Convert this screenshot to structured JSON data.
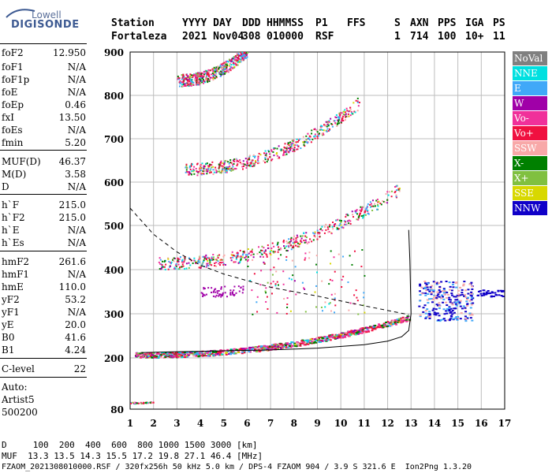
{
  "logo": {
    "line1": "Lowell",
    "line2": "DIGISONDE"
  },
  "header": {
    "row1": [
      "Station",
      "YYYY DAY",
      "DDD",
      "HHMMSS",
      "P1",
      "FFS",
      "S",
      "AXN",
      "PPS",
      "IGA",
      "PS"
    ],
    "row2": [
      "Fortaleza",
      "2021 Nov04",
      "308",
      "010000",
      "RSF",
      "",
      "1",
      "714",
      "100",
      "10+",
      "11"
    ]
  },
  "parameters": [
    {
      "label": "foF2",
      "value": "12.950"
    },
    {
      "label": "foF1",
      "value": "N/A"
    },
    {
      "label": "foF1p",
      "value": "N/A"
    },
    {
      "label": "foE",
      "value": "N/A"
    },
    {
      "label": "foEp",
      "value": "0.46"
    },
    {
      "label": "fxI",
      "value": "13.50"
    },
    {
      "label": "foEs",
      "value": "N/A"
    },
    {
      "label": "fmin",
      "value": "5.20"
    },
    {
      "label": "MUF(D)",
      "value": "46.37"
    },
    {
      "label": "M(D)",
      "value": "3.58"
    },
    {
      "label": "D",
      "value": "N/A"
    },
    {
      "label": "h`F",
      "value": "215.0"
    },
    {
      "label": "h`F2",
      "value": "215.0"
    },
    {
      "label": "h`E",
      "value": "N/A"
    },
    {
      "label": "h`Es",
      "value": "N/A"
    },
    {
      "label": "hmF2",
      "value": "261.6"
    },
    {
      "label": "hmF1",
      "value": "N/A"
    },
    {
      "label": "hmE",
      "value": "110.0"
    },
    {
      "label": "yF2",
      "value": "53.2"
    },
    {
      "label": "yF1",
      "value": "N/A"
    },
    {
      "label": "yE",
      "value": "20.0"
    },
    {
      "label": "B0",
      "value": "41.6"
    },
    {
      "label": "B1",
      "value": "4.24"
    },
    {
      "label": "C-level",
      "value": "22"
    }
  ],
  "scaling": {
    "line1": "Auto:",
    "line2": "Artist5",
    "line3": "500200"
  },
  "legend": [
    {
      "label": "NoVal",
      "color": "#808080"
    },
    {
      "label": "NNE",
      "color": "#00e0e0"
    },
    {
      "label": "E",
      "color": "#40a8f8"
    },
    {
      "label": "W",
      "color": "#a000a8"
    },
    {
      "label": "Vo-",
      "color": "#f0309a"
    },
    {
      "label": "Vo+",
      "color": "#f01040"
    },
    {
      "label": "SSW",
      "color": "#f8a8a8"
    },
    {
      "label": "X-",
      "color": "#008000"
    },
    {
      "label": "X+",
      "color": "#80c040"
    },
    {
      "label": "SSE",
      "color": "#d8d800"
    },
    {
      "label": "NNW",
      "color": "#1000c8"
    }
  ],
  "bottom": {
    "d_row": "D     100  200  400  600  800 1000 1500 3000 [km]",
    "muf_row": "MUF  13.3 13.5 14.3 15.5 17.2 19.8 27.1 46.4 [MHz]",
    "file_row": "FZAOM_2021308010000.RSF / 320fx256h 50 kHz 5.0 km / DPS-4 FZAOM 904 / 3.9 S 321.6 E  Ion2Png 1.3.20"
  },
  "chart_data": {
    "type": "scatter",
    "xlim": [
      1,
      17
    ],
    "ylim": [
      80,
      900
    ],
    "xticks": [
      "1",
      "2",
      "3",
      "4",
      "5",
      "6",
      "7",
      "8",
      "9",
      "10",
      "11",
      "12",
      "13",
      "14",
      "15",
      "16",
      "17"
    ],
    "yticks": [
      "80",
      "200",
      "300",
      "400",
      "500",
      "600",
      "700",
      "800",
      "900"
    ],
    "grid": true,
    "traces": [
      {
        "name": "F2 first hop",
        "x_range": [
          1.2,
          12.9
        ],
        "h_start": 205,
        "h_end": 290
      },
      {
        "name": "F2 second hop",
        "x_range": [
          2.2,
          12.5
        ],
        "h_start": 410,
        "h_end": 580
      },
      {
        "name": "F2 third hop",
        "x_range": [
          3.2,
          10.8
        ],
        "h_start": 625,
        "h_end": 780
      },
      {
        "name": "F2 fourth hop",
        "x_range": [
          3.0,
          6.0
        ],
        "h_start": 830,
        "h_end": 900
      },
      {
        "name": "E layer",
        "x_range": [
          1.0,
          2.0
        ],
        "h_start": 95,
        "h_end": 98
      }
    ],
    "profile_curve": {
      "x": [
        1.5,
        3,
        5,
        7,
        9,
        11,
        12,
        12.6,
        12.9,
        13.0,
        12.95,
        12.9
      ],
      "y": [
        212,
        214,
        216,
        218,
        222,
        230,
        238,
        248,
        262,
        300,
        420,
        490
      ]
    },
    "muf_curve": {
      "x": [
        1,
        2,
        3,
        4,
        5,
        7,
        9,
        11,
        12.9
      ],
      "y": [
        540,
        480,
        440,
        410,
        390,
        360,
        340,
        318,
        298
      ]
    }
  }
}
